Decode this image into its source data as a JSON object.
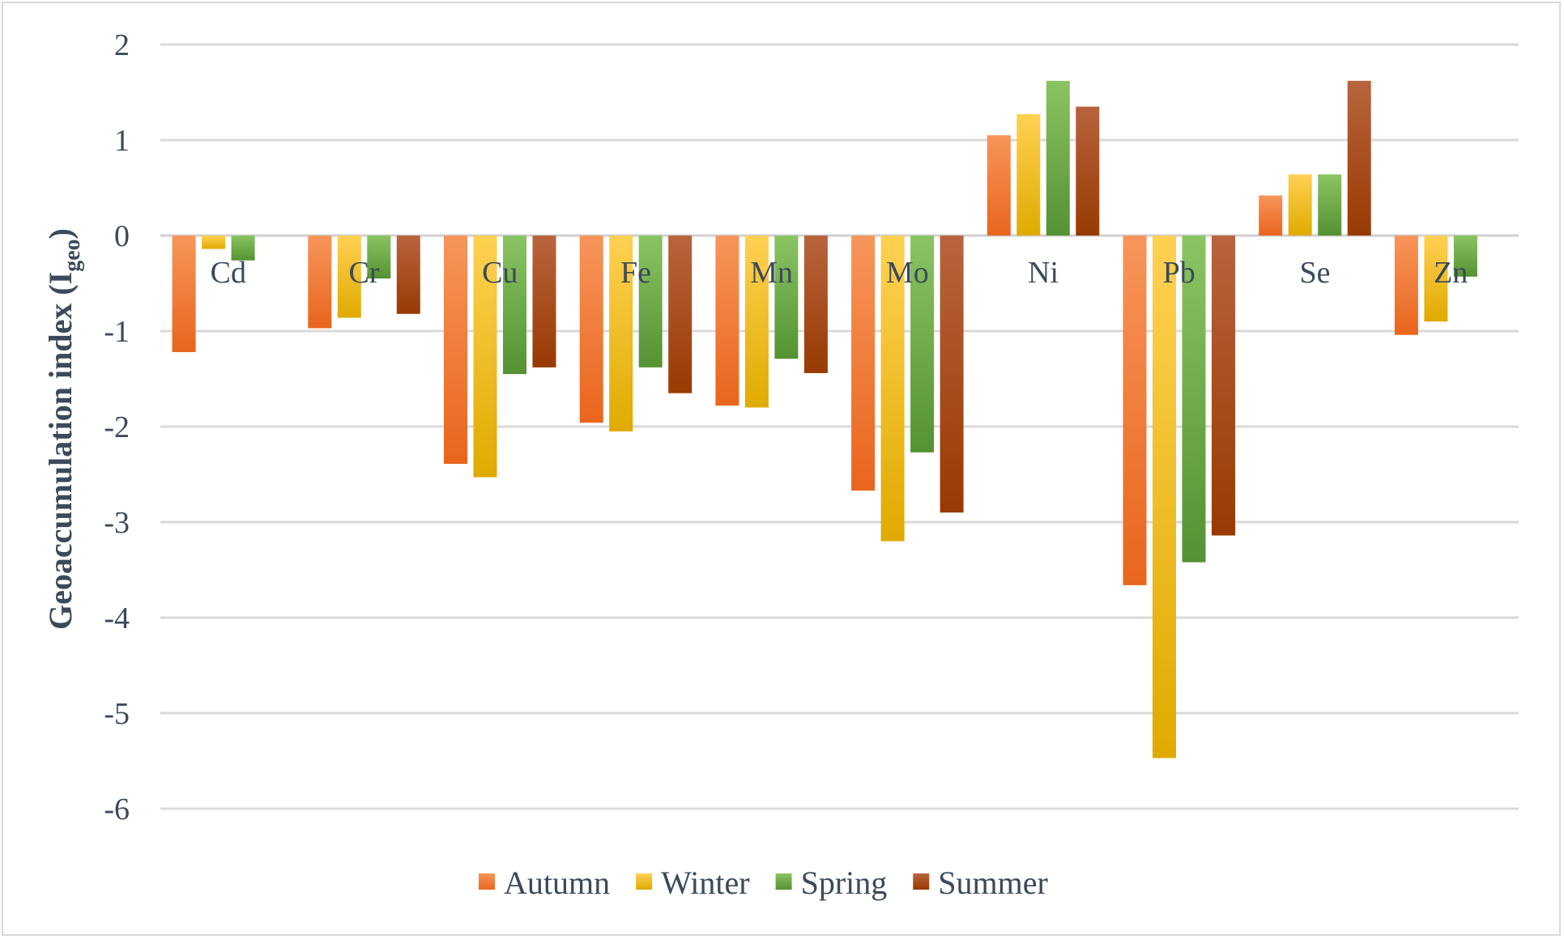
{
  "chart_data": {
    "type": "bar",
    "ylabel_main": "Geoaccumulation index (I",
    "ylabel_sub": "geo",
    "ylabel_close": ")",
    "ylim": [
      -6,
      2
    ],
    "yticks": [
      2,
      1,
      0,
      -1,
      -2,
      -3,
      -4,
      -5,
      -6
    ],
    "grid": true,
    "legend_position": "bottom",
    "categories": [
      "Cd",
      "Cr",
      "Cu",
      "Fe",
      "Mn",
      "Mo",
      "Ni",
      "Pb",
      "Se",
      "Zn"
    ],
    "series": [
      {
        "name": "Autumn",
        "color_top": "#f7955a",
        "color_bottom": "#e9651d",
        "values": [
          -1.22,
          -0.97,
          -2.39,
          -1.96,
          -1.78,
          -2.67,
          1.05,
          -3.66,
          0.42,
          -1.04
        ]
      },
      {
        "name": "Winter",
        "color_top": "#ffd152",
        "color_bottom": "#e0aa00",
        "values": [
          -0.14,
          -0.86,
          -2.53,
          -2.05,
          -1.8,
          -3.2,
          1.27,
          -5.47,
          0.64,
          -0.9
        ]
      },
      {
        "name": "Spring",
        "color_top": "#8bc462",
        "color_bottom": "#549232",
        "values": [
          -0.26,
          -0.45,
          -1.45,
          -1.38,
          -1.29,
          -2.27,
          1.62,
          -3.42,
          0.64,
          -0.43
        ]
      },
      {
        "name": "Summer",
        "color_top": "#b9643d",
        "color_bottom": "#983a02",
        "values": [
          null,
          -0.82,
          -1.38,
          -1.65,
          -1.44,
          -2.9,
          1.35,
          -3.14,
          1.62,
          null
        ]
      }
    ]
  }
}
